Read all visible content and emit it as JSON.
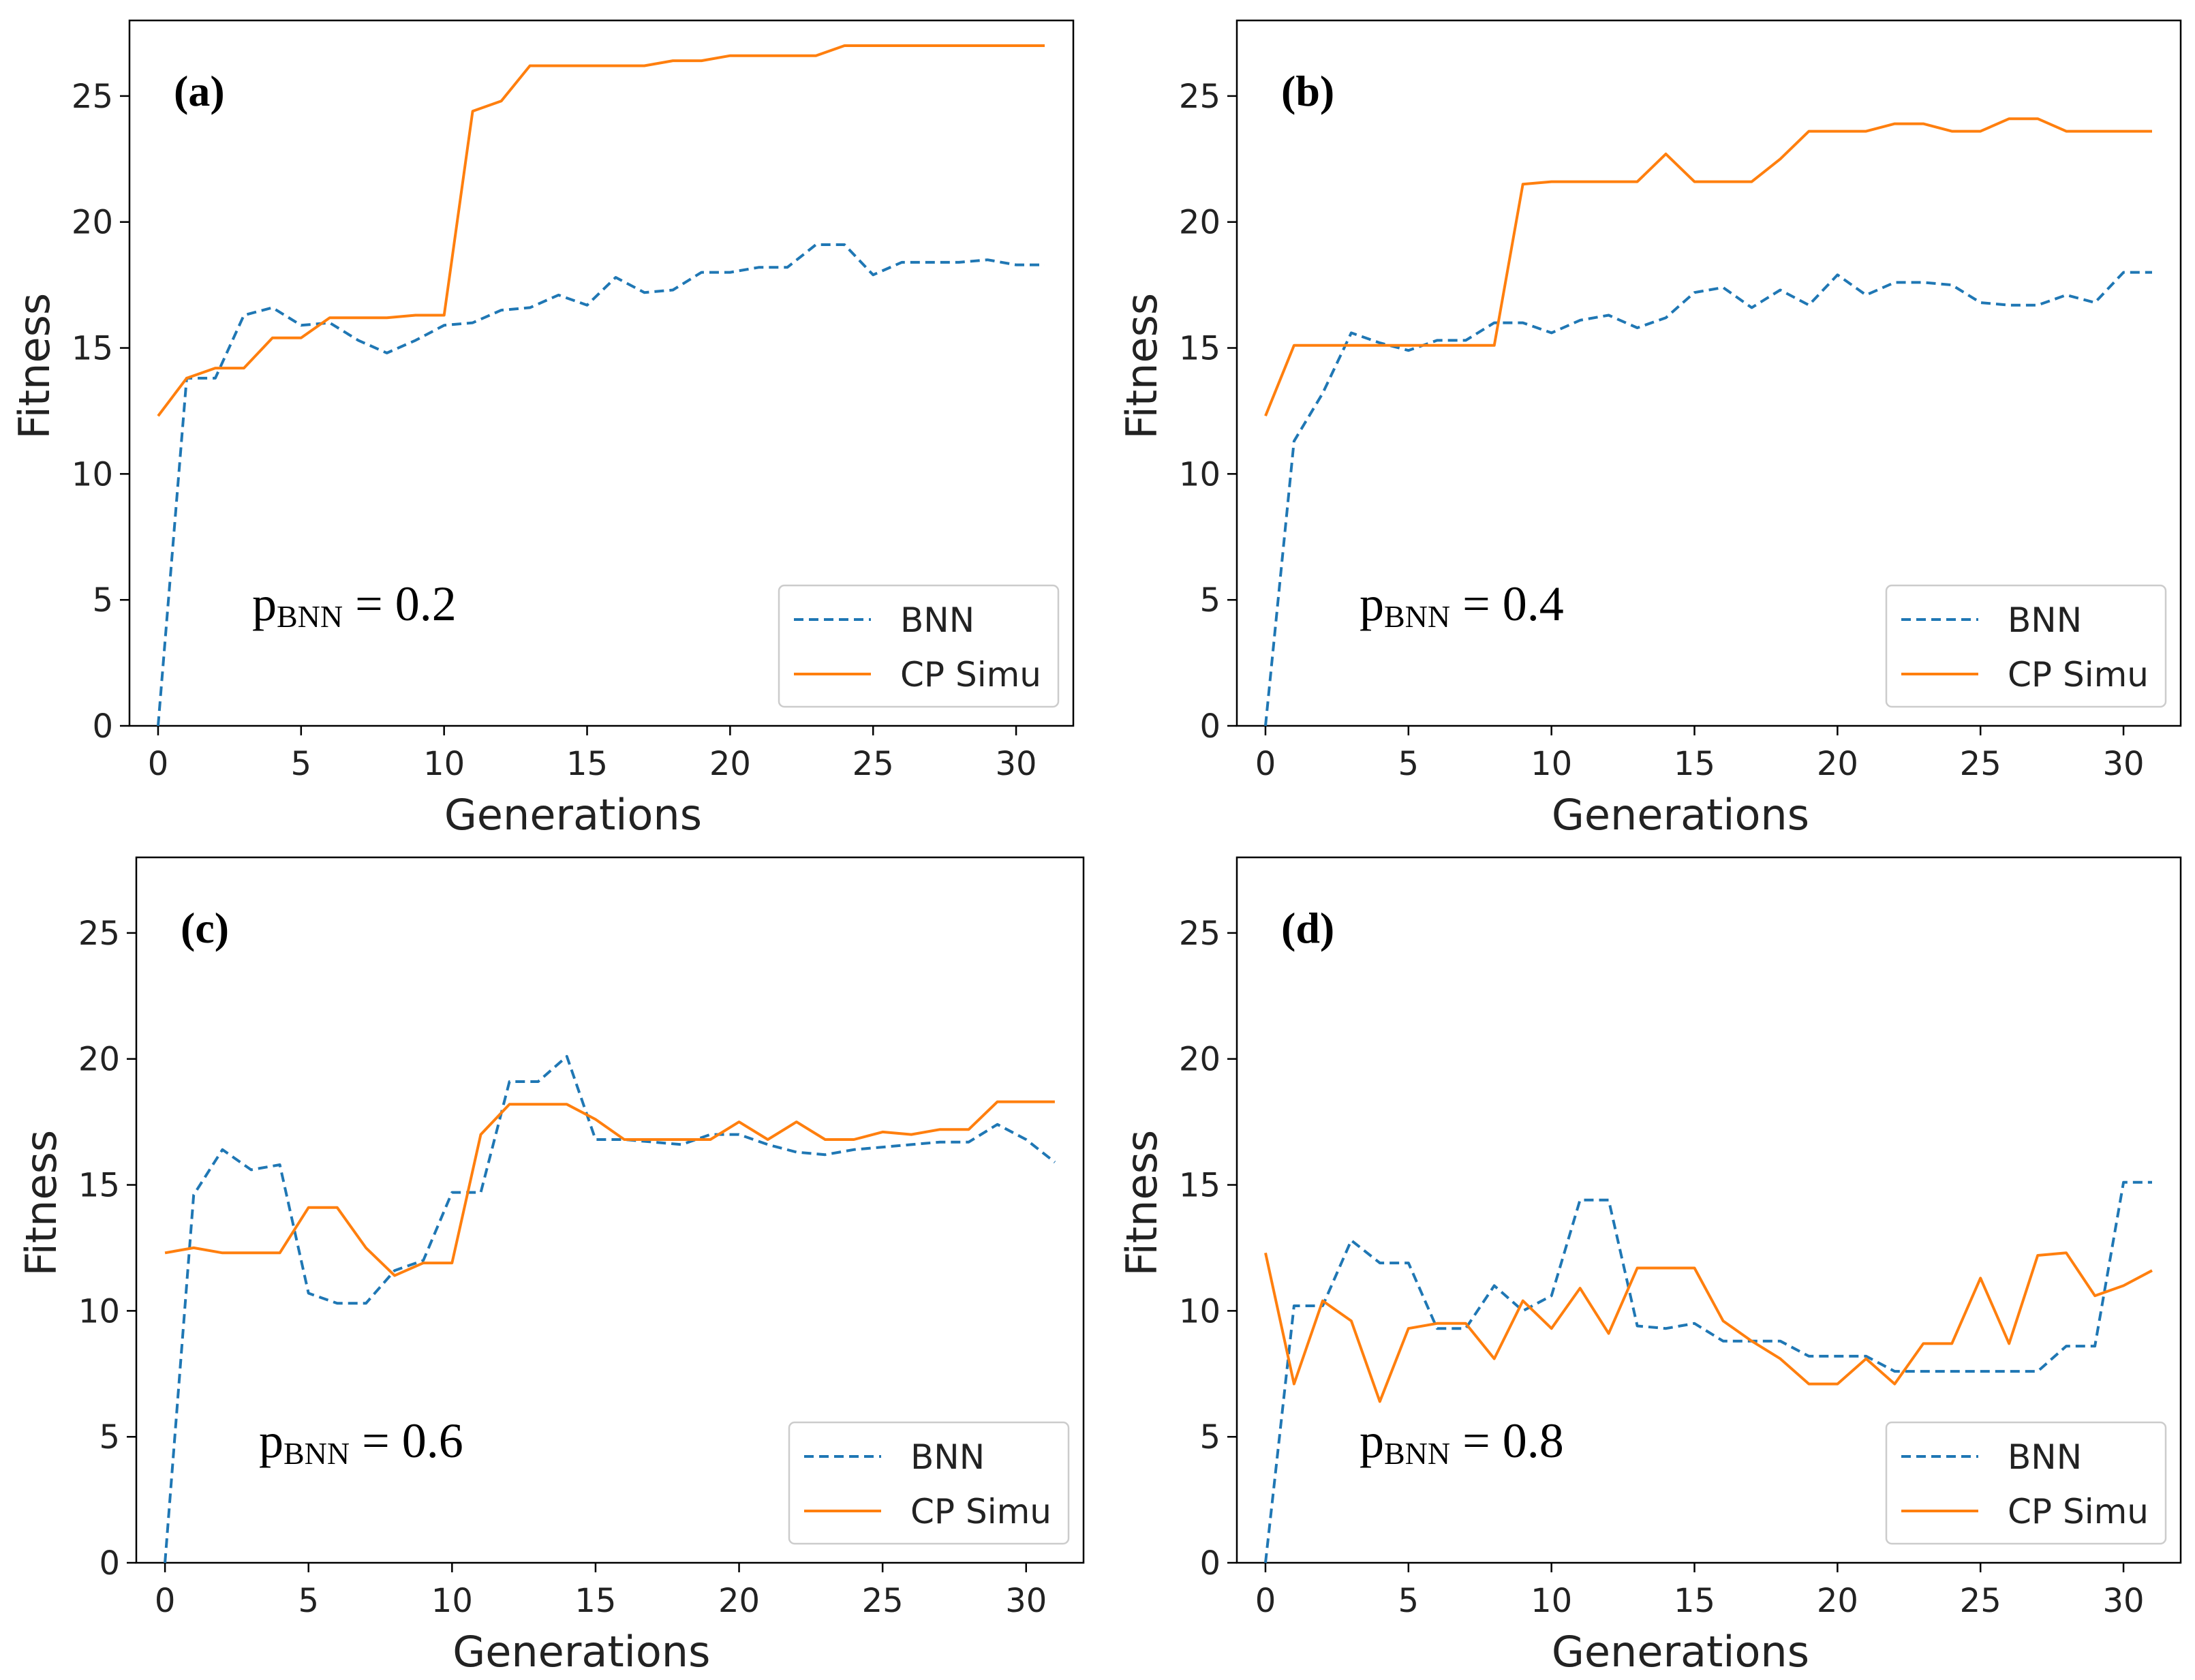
{
  "chart_data": [
    {
      "type": "line",
      "panel": "(a)",
      "annotation": {
        "text": "p",
        "subscript": "BNN",
        "value": " = 0.2"
      },
      "xlabel": "Generations",
      "ylabel": "Fitness",
      "xlim": [
        -1,
        32
      ],
      "ylim": [
        0,
        28
      ],
      "xticks": [
        0,
        5,
        10,
        15,
        20,
        25,
        30
      ],
      "yticks": [
        0,
        5,
        10,
        15,
        20,
        25
      ],
      "legend": "lower-right",
      "x": [
        0,
        1,
        2,
        3,
        4,
        5,
        6,
        7,
        8,
        9,
        10,
        11,
        12,
        13,
        14,
        15,
        16,
        17,
        18,
        19,
        20,
        21,
        22,
        23,
        24,
        25,
        26,
        27,
        28,
        29,
        30,
        31
      ],
      "series": [
        {
          "name": "BNN",
          "style": "dashed",
          "color": "#1f77b4",
          "values": [
            0,
            13.8,
            13.8,
            16.3,
            16.6,
            15.9,
            16.0,
            15.3,
            14.8,
            15.3,
            15.9,
            16.0,
            16.5,
            16.6,
            17.1,
            16.7,
            17.8,
            17.2,
            17.3,
            18.0,
            18.0,
            18.2,
            18.2,
            19.1,
            19.1,
            17.9,
            18.4,
            18.4,
            18.4,
            18.5,
            18.3,
            18.3
          ]
        },
        {
          "name": "CP Simu",
          "style": "solid",
          "color": "#ff7f0e",
          "values": [
            12.3,
            13.8,
            14.2,
            14.2,
            15.4,
            15.4,
            16.2,
            16.2,
            16.2,
            16.3,
            16.3,
            24.4,
            24.8,
            26.2,
            26.2,
            26.2,
            26.2,
            26.2,
            26.4,
            26.4,
            26.6,
            26.6,
            26.6,
            26.6,
            27.0,
            27.0,
            27.0,
            27.0,
            27.0,
            27.0,
            27.0,
            27.0
          ]
        }
      ]
    },
    {
      "type": "line",
      "panel": "(b)",
      "annotation": {
        "text": "p",
        "subscript": "BNN",
        "value": " = 0.4"
      },
      "xlabel": "Generations",
      "ylabel": "Fitness",
      "xlim": [
        -1,
        32
      ],
      "ylim": [
        0,
        28
      ],
      "xticks": [
        0,
        5,
        10,
        15,
        20,
        25,
        30
      ],
      "yticks": [
        0,
        5,
        10,
        15,
        20,
        25
      ],
      "legend": "lower-right",
      "x": [
        0,
        1,
        2,
        3,
        4,
        5,
        6,
        7,
        8,
        9,
        10,
        11,
        12,
        13,
        14,
        15,
        16,
        17,
        18,
        19,
        20,
        21,
        22,
        23,
        24,
        25,
        26,
        27,
        28,
        29,
        30,
        31
      ],
      "series": [
        {
          "name": "BNN",
          "style": "dashed",
          "color": "#1f77b4",
          "values": [
            0,
            11.3,
            13.2,
            15.6,
            15.2,
            14.9,
            15.3,
            15.3,
            16.0,
            16.0,
            15.6,
            16.1,
            16.3,
            15.8,
            16.2,
            17.2,
            17.4,
            16.6,
            17.3,
            16.7,
            17.9,
            17.1,
            17.6,
            17.6,
            17.5,
            16.8,
            16.7,
            16.7,
            17.1,
            16.8,
            18.0,
            18.0
          ]
        },
        {
          "name": "CP Simu",
          "style": "solid",
          "color": "#ff7f0e",
          "values": [
            12.3,
            15.1,
            15.1,
            15.1,
            15.1,
            15.1,
            15.1,
            15.1,
            15.1,
            21.5,
            21.6,
            21.6,
            21.6,
            21.6,
            22.7,
            21.6,
            21.6,
            21.6,
            22.5,
            23.6,
            23.6,
            23.6,
            23.9,
            23.9,
            23.6,
            23.6,
            24.1,
            24.1,
            23.6,
            23.6,
            23.6,
            23.6
          ]
        }
      ]
    },
    {
      "type": "line",
      "panel": "(c)",
      "annotation": {
        "text": "p",
        "subscript": "BNN",
        "value": " = 0.6"
      },
      "xlabel": "Generations",
      "ylabel": "Fitness",
      "xlim": [
        -1,
        32
      ],
      "ylim": [
        0,
        28
      ],
      "xticks": [
        0,
        5,
        10,
        15,
        20,
        25,
        30
      ],
      "yticks": [
        0,
        5,
        10,
        15,
        20,
        25
      ],
      "legend": "lower-right",
      "x": [
        0,
        1,
        2,
        3,
        4,
        5,
        6,
        7,
        8,
        9,
        10,
        11,
        12,
        13,
        14,
        15,
        16,
        17,
        18,
        19,
        20,
        21,
        22,
        23,
        24,
        25,
        26,
        27,
        28,
        29,
        30,
        31
      ],
      "series": [
        {
          "name": "BNN",
          "style": "dashed",
          "color": "#1f77b4",
          "values": [
            0,
            14.6,
            16.4,
            15.6,
            15.8,
            10.7,
            10.3,
            10.3,
            11.6,
            12.0,
            14.7,
            14.7,
            19.1,
            19.1,
            20.1,
            16.8,
            16.8,
            16.7,
            16.6,
            17.0,
            17.0,
            16.6,
            16.3,
            16.2,
            16.4,
            16.5,
            16.6,
            16.7,
            16.7,
            17.4,
            16.8,
            15.9
          ]
        },
        {
          "name": "CP Simu",
          "style": "solid",
          "color": "#ff7f0e",
          "values": [
            12.3,
            12.5,
            12.3,
            12.3,
            12.3,
            14.1,
            14.1,
            12.5,
            11.4,
            11.9,
            11.9,
            17.0,
            18.2,
            18.2,
            18.2,
            17.6,
            16.8,
            16.8,
            16.8,
            16.8,
            17.5,
            16.8,
            17.5,
            16.8,
            16.8,
            17.1,
            17.0,
            17.2,
            17.2,
            18.3,
            18.3,
            18.3
          ]
        }
      ]
    },
    {
      "type": "line",
      "panel": "(d)",
      "annotation": {
        "text": "p",
        "subscript": "BNN",
        "value": " = 0.8"
      },
      "xlabel": "Generations",
      "ylabel": "Fitness",
      "xlim": [
        -1,
        32
      ],
      "ylim": [
        0,
        28
      ],
      "xticks": [
        0,
        5,
        10,
        15,
        20,
        25,
        30
      ],
      "yticks": [
        0,
        5,
        10,
        15,
        20,
        25
      ],
      "legend": "lower-right",
      "x": [
        0,
        1,
        2,
        3,
        4,
        5,
        6,
        7,
        8,
        9,
        10,
        11,
        12,
        13,
        14,
        15,
        16,
        17,
        18,
        19,
        20,
        21,
        22,
        23,
        24,
        25,
        26,
        27,
        28,
        29,
        30,
        31
      ],
      "series": [
        {
          "name": "BNN",
          "style": "dashed",
          "color": "#1f77b4",
          "values": [
            0,
            10.2,
            10.2,
            12.8,
            11.9,
            11.9,
            9.3,
            9.3,
            11.0,
            10.0,
            10.6,
            14.4,
            14.4,
            9.4,
            9.3,
            9.5,
            8.8,
            8.8,
            8.8,
            8.2,
            8.2,
            8.2,
            7.6,
            7.6,
            7.6,
            7.6,
            7.6,
            7.6,
            8.6,
            8.6,
            15.1,
            15.1
          ]
        },
        {
          "name": "CP Simu",
          "style": "solid",
          "color": "#ff7f0e",
          "values": [
            12.3,
            7.1,
            10.4,
            9.6,
            6.4,
            9.3,
            9.5,
            9.5,
            8.1,
            10.4,
            9.3,
            10.9,
            9.1,
            11.7,
            11.7,
            11.7,
            9.6,
            8.8,
            8.1,
            7.1,
            7.1,
            8.1,
            7.1,
            8.7,
            8.7,
            11.3,
            8.7,
            12.2,
            12.3,
            10.6,
            11.0,
            11.6
          ]
        }
      ]
    }
  ]
}
